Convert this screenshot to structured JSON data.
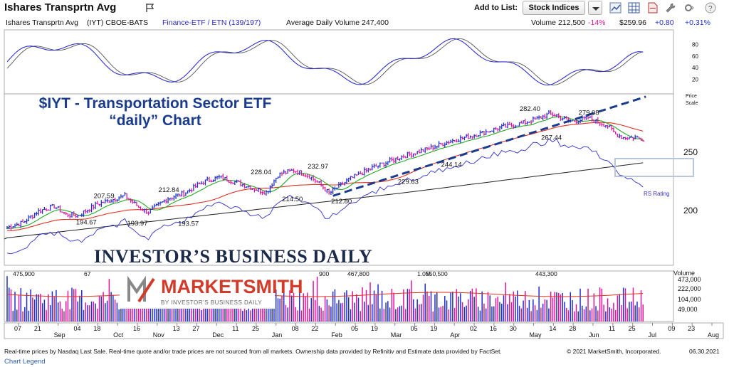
{
  "header": {
    "title": "Ishares Transprtn Avg",
    "add_to_list_label": "Add to List:",
    "list_selected": "Stock Indices",
    "icons": [
      "flag-icon",
      "chart-icon",
      "grid-icon",
      "pdf-icon",
      "wrench-icon",
      "settings-icon",
      "help-icon"
    ]
  },
  "info_bar": {
    "name": "Ishares Transprtn Avg",
    "ticker_exchange": "(IYT) CBOE-BATS",
    "group": "Finance-ETF / ETN (139/197)",
    "avg_volume": "Average Daily Volume 247,400",
    "volume": "Volume 212,500",
    "volume_change": "-14%",
    "price": "$259.96",
    "change": "+0.80",
    "change_pct": "+0.31%"
  },
  "annotation": {
    "line1": "$IYT - Transportation Sector ETF",
    "line2": "“daily” Chart"
  },
  "logos": {
    "ibd": "INVESTOR’S BUSINESS DAILY",
    "marketsmith": "MARKETSMITH",
    "marketsmith_sub": "BY INVESTOR’S BUSINESS DAILY"
  },
  "footer": {
    "disclaimer": "Real-time prices by Nasdaq Last Sale. Real-time quote and/or trade prices are not sourced from all markets. Ownership data provided by Refinitiv and Estimate data provided by FactSet. ",
    "copyright": "© 2021 MarketSmith, Incorporated.",
    "date": "06.30.2021",
    "legend_link": "Chart Legend"
  },
  "colors": {
    "up": "#1f2fcf",
    "down": "#e0169a",
    "ma50": "#22aa22",
    "ma200": "#e03020",
    "rs": "#3030d0",
    "trend": "#1a3c8f",
    "positive": "#1f2fcf",
    "negative": "#e0169a"
  },
  "chart_data": {
    "type": "candlestick",
    "price_axis": {
      "ticks": [
        200,
        250
      ],
      "ylim": [
        165,
        305
      ],
      "label": "Price Scale"
    },
    "oscillator_axis": {
      "ticks": [
        20,
        40,
        60,
        80
      ],
      "ylim": [
        0,
        100
      ]
    },
    "volume_axis": {
      "ticks": [
        "473,000",
        "222,000",
        "104,000",
        "49,000"
      ],
      "label": "Volume"
    },
    "x_ticks": [
      "07",
      "21",
      "Sep",
      "04",
      "18",
      "Oct",
      "16",
      "Nov",
      "13",
      "27",
      "Dec",
      "11",
      "25",
      "Jan",
      "08",
      "22",
      "Feb",
      "05",
      "19",
      "Mar",
      "05",
      "19",
      "Apr",
      "02",
      "16",
      "30",
      "May",
      "14",
      "28",
      "Jun",
      "11",
      "25",
      "Jul",
      "09",
      "23",
      "Aug"
    ],
    "price_path": [
      [
        0,
        185
      ],
      [
        8,
        189
      ],
      [
        16,
        199
      ],
      [
        24,
        203
      ],
      [
        30,
        196
      ],
      [
        36,
        195
      ],
      [
        46,
        205
      ],
      [
        60,
        212
      ],
      [
        68,
        201
      ],
      [
        72,
        198
      ],
      [
        82,
        210
      ],
      [
        90,
        214
      ],
      [
        100,
        224
      ],
      [
        108,
        228
      ],
      [
        118,
        223
      ],
      [
        126,
        218
      ],
      [
        132,
        215
      ],
      [
        138,
        230
      ],
      [
        146,
        234
      ],
      [
        154,
        229
      ],
      [
        160,
        221
      ],
      [
        164,
        214
      ],
      [
        174,
        226
      ],
      [
        186,
        236
      ],
      [
        200,
        245
      ],
      [
        212,
        251
      ],
      [
        226,
        259
      ],
      [
        238,
        264
      ],
      [
        250,
        270
      ],
      [
        262,
        274
      ],
      [
        270,
        278
      ],
      [
        276,
        282
      ],
      [
        280,
        281
      ],
      [
        286,
        276
      ],
      [
        292,
        277
      ],
      [
        296,
        279
      ],
      [
        300,
        276
      ],
      [
        306,
        272
      ],
      [
        310,
        265
      ],
      [
        314,
        262
      ],
      [
        320,
        262
      ],
      [
        324,
        261
      ]
    ],
    "swing_labels": [
      {
        "x": 38,
        "y": 194.67,
        "label": "194.67"
      },
      {
        "x": 47,
        "y": 207.59,
        "label": "207.59"
      },
      {
        "x": 64,
        "y": 193.97,
        "label": "193.97"
      },
      {
        "x": 80,
        "y": 212.84,
        "label": "212.84"
      },
      {
        "x": 90,
        "y": 193.57,
        "label": "193.57"
      },
      {
        "x": 127,
        "y": 228.04,
        "label": "228.04"
      },
      {
        "x": 143,
        "y": 214.5,
        "label": "214.50"
      },
      {
        "x": 156,
        "y": 232.97,
        "label": "232.97"
      },
      {
        "x": 168,
        "y": 212.8,
        "label": "212.80"
      },
      {
        "x": 202,
        "y": 229.63,
        "label": "229.63"
      },
      {
        "x": 224,
        "y": 244.14,
        "label": "244.14"
      },
      {
        "x": 264,
        "y": 282.4,
        "label": "282.40"
      },
      {
        "x": 275,
        "y": 267.44,
        "label": "267.44"
      },
      {
        "x": 294,
        "y": 279.08,
        "label": "279.08"
      }
    ],
    "volume_labels": [
      "475,900",
      "67",
      "900",
      "467,800",
      "1.0M",
      "550,500",
      "443,300"
    ],
    "series": [
      {
        "name": "RS Rating",
        "values": []
      }
    ]
  }
}
